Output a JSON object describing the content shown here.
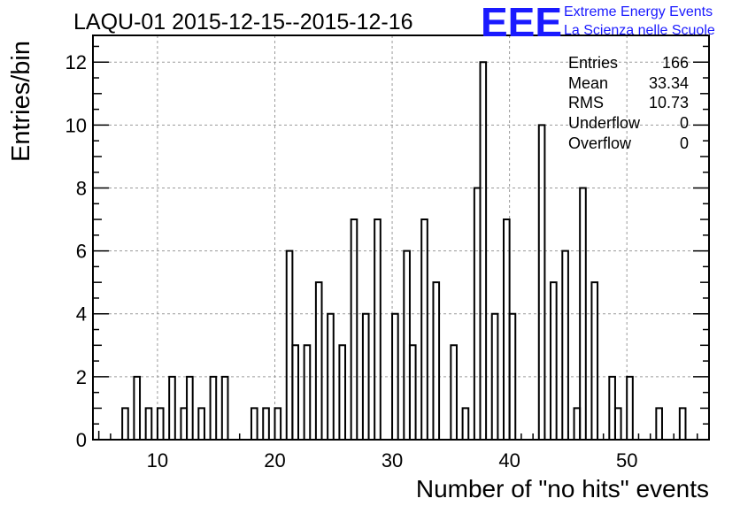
{
  "chart_data": {
    "type": "bar",
    "title": "LAQU-01 2015-12-15--2015-12-16",
    "xlabel": "Number of \"no hits\" events",
    "ylabel": "Entries/bin",
    "xlim": [
      4.5,
      57.0
    ],
    "ylim": [
      0,
      12.85
    ],
    "bin_width": 0.5,
    "x_ticks": [
      10,
      20,
      30,
      40,
      50
    ],
    "y_ticks": [
      0,
      2,
      4,
      6,
      8,
      10,
      12
    ],
    "grid": true,
    "bins": [
      {
        "x": 7.0,
        "v": 1
      },
      {
        "x": 8.0,
        "v": 2
      },
      {
        "x": 9.0,
        "v": 1
      },
      {
        "x": 10.0,
        "v": 1
      },
      {
        "x": 11.0,
        "v": 2
      },
      {
        "x": 12.0,
        "v": 1
      },
      {
        "x": 12.5,
        "v": 2
      },
      {
        "x": 13.5,
        "v": 1
      },
      {
        "x": 14.5,
        "v": 2
      },
      {
        "x": 15.5,
        "v": 2
      },
      {
        "x": 18.0,
        "v": 1
      },
      {
        "x": 19.0,
        "v": 1
      },
      {
        "x": 20.0,
        "v": 1
      },
      {
        "x": 21.0,
        "v": 6
      },
      {
        "x": 21.5,
        "v": 3
      },
      {
        "x": 22.5,
        "v": 3
      },
      {
        "x": 23.5,
        "v": 5
      },
      {
        "x": 24.5,
        "v": 4
      },
      {
        "x": 25.5,
        "v": 3
      },
      {
        "x": 26.5,
        "v": 7
      },
      {
        "x": 27.5,
        "v": 4
      },
      {
        "x": 28.5,
        "v": 7
      },
      {
        "x": 30.0,
        "v": 4
      },
      {
        "x": 31.0,
        "v": 6
      },
      {
        "x": 31.5,
        "v": 3
      },
      {
        "x": 32.5,
        "v": 7
      },
      {
        "x": 33.5,
        "v": 5
      },
      {
        "x": 35.0,
        "v": 3
      },
      {
        "x": 36.0,
        "v": 1
      },
      {
        "x": 37.0,
        "v": 8
      },
      {
        "x": 37.5,
        "v": 12
      },
      {
        "x": 38.5,
        "v": 4
      },
      {
        "x": 39.5,
        "v": 7
      },
      {
        "x": 40.0,
        "v": 4
      },
      {
        "x": 42.5,
        "v": 10
      },
      {
        "x": 43.5,
        "v": 5
      },
      {
        "x": 44.5,
        "v": 6
      },
      {
        "x": 45.5,
        "v": 1
      },
      {
        "x": 46.0,
        "v": 8
      },
      {
        "x": 47.0,
        "v": 5
      },
      {
        "x": 48.5,
        "v": 2
      },
      {
        "x": 49.0,
        "v": 1
      },
      {
        "x": 50.0,
        "v": 2
      },
      {
        "x": 52.5,
        "v": 1
      },
      {
        "x": 54.5,
        "v": 1
      }
    ]
  },
  "stats": {
    "entries_label": "Entries",
    "entries_value": "166",
    "mean_label": "Mean",
    "mean_value": "33.34",
    "rms_label": "RMS",
    "rms_value": "10.73",
    "underflow_label": "Underflow",
    "underflow_value": "0",
    "overflow_label": "Overflow",
    "overflow_value": "0"
  },
  "logo": {
    "mark": "EEE",
    "line1": "Extreme Energy Events",
    "line2": "La Scienza nelle Scuole",
    "color": "#1a1aff"
  }
}
